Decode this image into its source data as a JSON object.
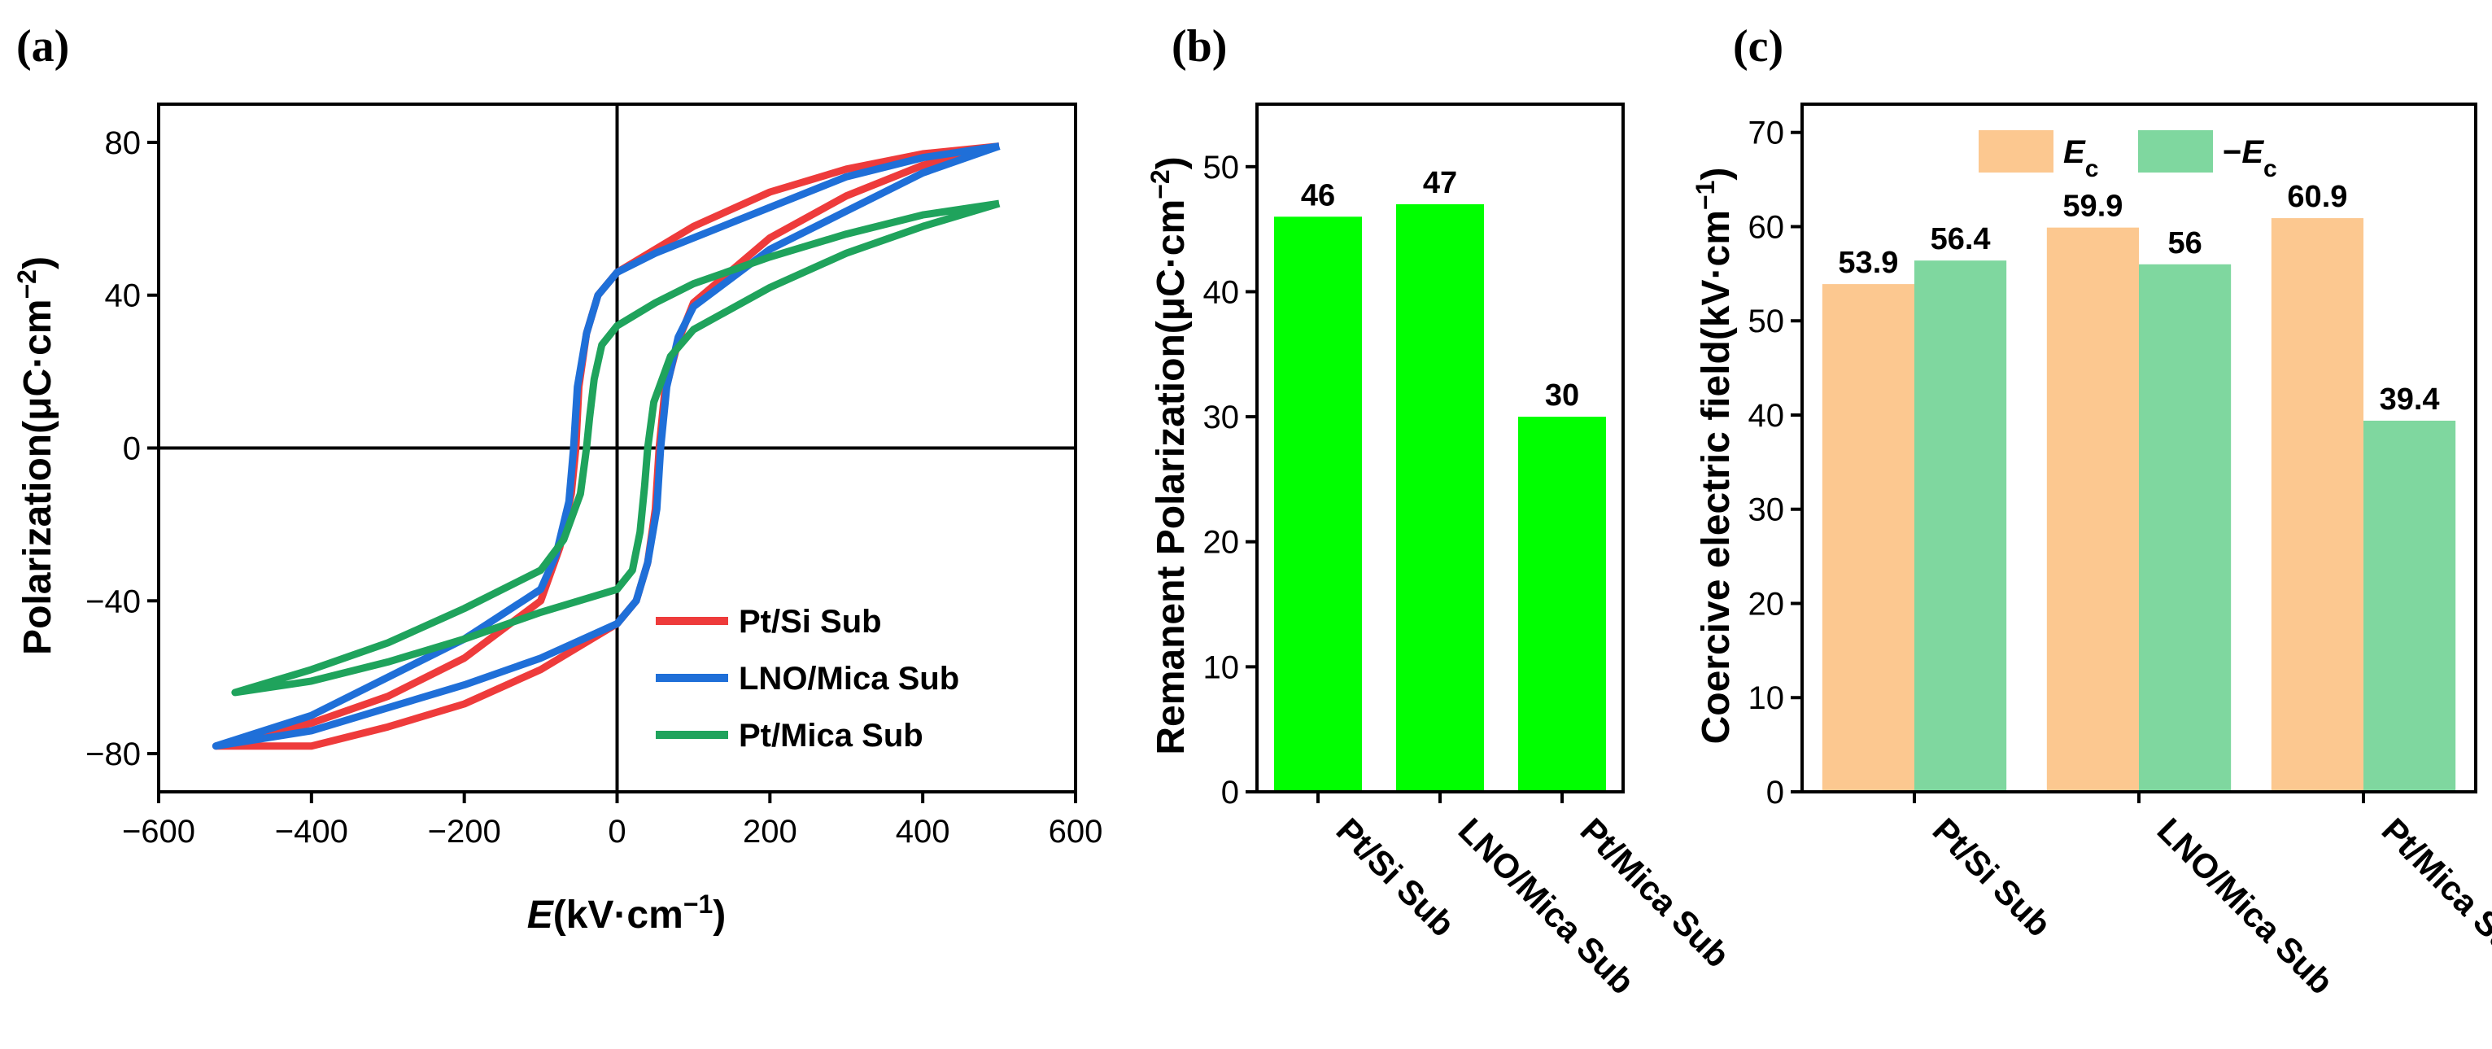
{
  "chart_data": [
    {
      "panel": "(a)",
      "type": "line",
      "xlabel_main": "E",
      "xlabel_unit": "(kV·cm",
      "xlabel_exp": "−1",
      "xlabel_close": ")",
      "ylabel_main": "Polarization(μC·cm",
      "ylabel_exp": "−2",
      "ylabel_close": ")",
      "xlim": [
        -600,
        600
      ],
      "ylim": [
        -90,
        90
      ],
      "xticks": [
        -600,
        -400,
        -200,
        0,
        200,
        400,
        600
      ],
      "yticks": [
        -80,
        -40,
        0,
        40,
        80
      ],
      "xtick_labels": [
        "−600",
        "−400",
        "−200",
        "0",
        "200",
        "400",
        "600"
      ],
      "ytick_labels": [
        "−80",
        "−40",
        "0",
        "40",
        "80"
      ],
      "legend_position": "lower-right",
      "series": [
        {
          "name": "Pt/Si Sub",
          "color": "#ee3b3b",
          "upper": [
            [
              500,
              79
            ],
            [
              400,
              77
            ],
            [
              300,
              73
            ],
            [
              200,
              67
            ],
            [
              100,
              58
            ],
            [
              50,
              52
            ],
            [
              0,
              46
            ],
            [
              -25,
              40
            ],
            [
              -40,
              30
            ],
            [
              -50,
              16
            ],
            [
              -54,
              0
            ],
            [
              -60,
              -12
            ],
            [
              -75,
              -26
            ],
            [
              -100,
              -40
            ],
            [
              -200,
              -55
            ],
            [
              -300,
              -65
            ],
            [
              -400,
              -72
            ],
            [
              -525,
              -78
            ]
          ],
          "lower": [
            [
              -525,
              -78
            ],
            [
              -400,
              -78
            ],
            [
              -300,
              -73
            ],
            [
              -200,
              -67
            ],
            [
              -100,
              -58
            ],
            [
              0,
              -46
            ],
            [
              25,
              -40
            ],
            [
              40,
              -30
            ],
            [
              50,
              -16
            ],
            [
              55,
              0
            ],
            [
              62,
              14
            ],
            [
              80,
              28
            ],
            [
              100,
              38
            ],
            [
              200,
              55
            ],
            [
              300,
              66
            ],
            [
              400,
              74
            ],
            [
              500,
              79
            ]
          ]
        },
        {
          "name": "LNO/Mica Sub",
          "color": "#1f6fd8",
          "upper": [
            [
              500,
              79
            ],
            [
              400,
              76
            ],
            [
              300,
              71
            ],
            [
              200,
              63
            ],
            [
              100,
              55
            ],
            [
              50,
              51
            ],
            [
              0,
              46
            ],
            [
              -25,
              40
            ],
            [
              -40,
              30
            ],
            [
              -52,
              16
            ],
            [
              -57,
              0
            ],
            [
              -63,
              -14
            ],
            [
              -80,
              -28
            ],
            [
              -100,
              -37
            ],
            [
              -200,
              -50
            ],
            [
              -300,
              -60
            ],
            [
              -400,
              -70
            ],
            [
              -525,
              -78
            ]
          ],
          "lower": [
            [
              -525,
              -78
            ],
            [
              -400,
              -74
            ],
            [
              -300,
              -68
            ],
            [
              -200,
              -62
            ],
            [
              -100,
              -55
            ],
            [
              0,
              -46
            ],
            [
              25,
              -40
            ],
            [
              40,
              -30
            ],
            [
              52,
              -16
            ],
            [
              57,
              0
            ],
            [
              65,
              16
            ],
            [
              80,
              29
            ],
            [
              100,
              37
            ],
            [
              200,
              52
            ],
            [
              300,
              62
            ],
            [
              400,
              72
            ],
            [
              500,
              79
            ]
          ]
        },
        {
          "name": "Pt/Mica Sub",
          "color": "#1fa35c",
          "upper": [
            [
              500,
              64
            ],
            [
              400,
              61
            ],
            [
              300,
              56
            ],
            [
              200,
              50
            ],
            [
              100,
              43
            ],
            [
              50,
              38
            ],
            [
              0,
              32
            ],
            [
              -20,
              27
            ],
            [
              -30,
              18
            ],
            [
              -36,
              8
            ],
            [
              -40,
              0
            ],
            [
              -48,
              -12
            ],
            [
              -70,
              -24
            ],
            [
              -100,
              -32
            ],
            [
              -200,
              -42
            ],
            [
              -300,
              -51
            ],
            [
              -400,
              -58
            ],
            [
              -500,
              -64
            ]
          ],
          "lower": [
            [
              -500,
              -64
            ],
            [
              -400,
              -61
            ],
            [
              -300,
              -56
            ],
            [
              -200,
              -50
            ],
            [
              -100,
              -43
            ],
            [
              0,
              -37
            ],
            [
              20,
              -32
            ],
            [
              30,
              -22
            ],
            [
              36,
              -10
            ],
            [
              40,
              0
            ],
            [
              48,
              12
            ],
            [
              70,
              24
            ],
            [
              100,
              31
            ],
            [
              200,
              42
            ],
            [
              300,
              51
            ],
            [
              400,
              58
            ],
            [
              500,
              64
            ]
          ]
        }
      ]
    },
    {
      "panel": "(b)",
      "type": "bar",
      "ylabel_main": "Remanent Polarization(μC·cm",
      "ylabel_exp": "−2",
      "ylabel_close": ")",
      "ylim": [
        0,
        55
      ],
      "yticks": [
        0,
        10,
        20,
        30,
        40,
        50
      ],
      "ytick_labels": [
        "0",
        "10",
        "20",
        "30",
        "40",
        "50"
      ],
      "categories": [
        "Pt/Si Sub",
        "LNO/Mica Sub",
        "Pt/Mica Sub"
      ],
      "values": [
        46,
        47,
        30
      ],
      "value_labels": [
        "46",
        "47",
        "30"
      ],
      "color": "#00ff00"
    },
    {
      "panel": "(c)",
      "type": "bar",
      "ylabel_main": "Coercive electric field(kV·cm",
      "ylabel_exp": "−1",
      "ylabel_close": ")",
      "ylim": [
        0,
        73
      ],
      "yticks": [
        0,
        10,
        20,
        30,
        40,
        50,
        60,
        70
      ],
      "ytick_labels": [
        "0",
        "10",
        "20",
        "30",
        "40",
        "50",
        "60",
        "70"
      ],
      "categories": [
        "Pt/Si Sub",
        "LNO/Mica Sub",
        "Pt/Mica Sub"
      ],
      "legend_position": "top-center",
      "series": [
        {
          "name_main": "E",
          "name_sub": "c",
          "name_prefix": "",
          "color": "#fcc890",
          "values": [
            53.9,
            59.9,
            60.9
          ],
          "value_labels": [
            "53.9",
            "59.9",
            "60.9"
          ]
        },
        {
          "name_main": "E",
          "name_sub": "c",
          "name_prefix": "−",
          "color": "#7fd79f",
          "values": [
            56.4,
            56,
            39.4
          ],
          "value_labels": [
            "56.4",
            "56",
            "39.4"
          ]
        }
      ]
    }
  ]
}
